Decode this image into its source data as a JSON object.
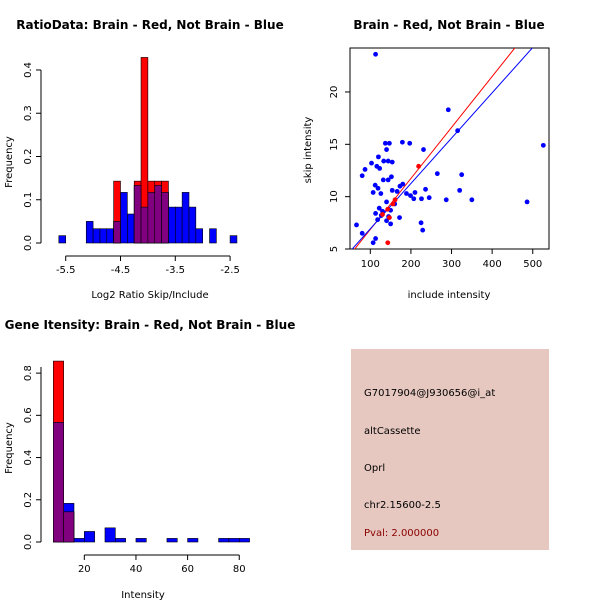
{
  "colors": {
    "red": "#ff0000",
    "blue": "#0000ff",
    "overlap": "#800080",
    "info_bg": "#e6c8c0",
    "pval": "#8b0000"
  },
  "chart_data": [
    {
      "id": "ratio",
      "type": "bar",
      "title": "RatioData: Brain - Red, Not Brain - Blue",
      "xlabel": "Log2 Ratio Skip/Include",
      "ylabel": "Frequency",
      "xlim": [
        -5.75,
        -2.1
      ],
      "ylim": [
        0,
        0.43
      ],
      "xticks": [
        -5.5,
        -4.5,
        -3.5,
        -2.5
      ],
      "xtick_labels": [
        "-5.5",
        "-4.5",
        "-3.5",
        "-2.5"
      ],
      "yticks": [
        0,
        0.1,
        0.2,
        0.3,
        0.4
      ],
      "ytick_labels": [
        "0.0",
        "0.1",
        "0.2",
        "0.3",
        "0.4"
      ],
      "bin_width": 0.125,
      "series": [
        {
          "name": "Not Brain",
          "color": "blue",
          "bins": [
            [
              -5.625,
              0.017
            ],
            [
              -5.125,
              0.05
            ],
            [
              -5.0,
              0.033
            ],
            [
              -4.875,
              0.033
            ],
            [
              -4.75,
              0.033
            ],
            [
              -4.625,
              0.05
            ],
            [
              -4.5,
              0.117
            ],
            [
              -4.375,
              0.067
            ],
            [
              -4.25,
              0.133
            ],
            [
              -4.125,
              0.083
            ],
            [
              -4.0,
              0.117
            ],
            [
              -3.875,
              0.133
            ],
            [
              -3.75,
              0.117
            ],
            [
              -3.625,
              0.083
            ],
            [
              -3.5,
              0.083
            ],
            [
              -3.375,
              0.117
            ],
            [
              -3.25,
              0.083
            ],
            [
              -3.125,
              0.033
            ],
            [
              -2.875,
              0.033
            ],
            [
              -2.5,
              0.017
            ]
          ]
        },
        {
          "name": "Brain",
          "color": "red",
          "bins": [
            [
              -4.625,
              0.143
            ],
            [
              -4.25,
              0.143
            ],
            [
              -4.125,
              0.429
            ],
            [
              -4.0,
              0.143
            ],
            [
              -3.875,
              0.143
            ],
            [
              -3.75,
              0.143
            ]
          ]
        }
      ]
    },
    {
      "id": "scatter",
      "type": "scatter",
      "title": "Brain - Red, Not Brain - Blue",
      "xlabel": "include intensity",
      "ylabel": "skip intensity",
      "xlim": [
        50,
        540
      ],
      "ylim": [
        5,
        24.2
      ],
      "xticks": [
        100,
        200,
        300,
        400,
        500
      ],
      "xtick_labels": [
        "100",
        "200",
        "300",
        "400",
        "500"
      ],
      "yticks": [
        5,
        10,
        15,
        20
      ],
      "ytick_labels": [
        "5",
        "10",
        "15",
        "20"
      ],
      "series": [
        {
          "name": "Not Brain",
          "color": "blue",
          "points": [
            [
              113,
              23.6
            ],
            [
              292,
              18.3
            ],
            [
              315,
              16.3
            ],
            [
              526,
              14.9
            ],
            [
              179,
              15.2
            ],
            [
              197,
              15.1
            ],
            [
              147,
              15.1
            ],
            [
              137,
              15.1
            ],
            [
              140,
              14.5
            ],
            [
              231,
              14.5
            ],
            [
              103,
              13.2
            ],
            [
              120,
              13.8
            ],
            [
              133,
              13.4
            ],
            [
              144,
              13.4
            ],
            [
              154,
              13.3
            ],
            [
              116,
              12.9
            ],
            [
              87,
              12.6
            ],
            [
              123,
              12.7
            ],
            [
              325,
              12.1
            ],
            [
              265,
              12.2
            ],
            [
              80,
              12.0
            ],
            [
              152,
              11.9
            ],
            [
              112,
              11.1
            ],
            [
              119,
              10.8
            ],
            [
              173,
              11.0
            ],
            [
              180,
              11.2
            ],
            [
              132,
              11.6
            ],
            [
              144,
              11.6
            ],
            [
              107,
              10.4
            ],
            [
              126,
              10.3
            ],
            [
              154,
              10.6
            ],
            [
              166,
              10.5
            ],
            [
              210,
              10.4
            ],
            [
              236,
              10.7
            ],
            [
              320,
              10.6
            ],
            [
              189,
              10.3
            ],
            [
              199,
              10.1
            ],
            [
              245,
              9.9
            ],
            [
              287,
              9.7
            ],
            [
              207,
              9.8
            ],
            [
              226,
              9.8
            ],
            [
              140,
              9.5
            ],
            [
              160,
              9.3
            ],
            [
              486,
              9.5
            ],
            [
              350,
              9.7
            ],
            [
              122,
              8.9
            ],
            [
              130,
              8.6
            ],
            [
              150,
              8.7
            ],
            [
              113,
              8.4
            ],
            [
              127,
              8.2
            ],
            [
              145,
              8.1
            ],
            [
              172,
              8.0
            ],
            [
              118,
              7.8
            ],
            [
              140,
              7.7
            ],
            [
              150,
              7.4
            ],
            [
              225,
              7.5
            ],
            [
              229,
              6.8
            ],
            [
              66,
              7.3
            ],
            [
              80,
              6.5
            ],
            [
              113,
              6.0
            ],
            [
              107,
              5.6
            ]
          ]
        },
        {
          "name": "Brain",
          "color": "red",
          "points": [
            [
              219,
              12.9
            ],
            [
              161,
              9.7
            ],
            [
              143,
              5.6
            ],
            [
              147,
              8.0
            ],
            [
              130,
              8.3
            ],
            [
              156,
              9.3
            ],
            [
              143,
              8.8
            ]
          ]
        }
      ],
      "fit_lines": [
        {
          "name": "Brain fit",
          "color": "red",
          "slope": 0.0487,
          "intercept": 2.0
        },
        {
          "name": "Not Brain fit",
          "color": "blue",
          "slope": 0.0433,
          "intercept": 2.6
        }
      ]
    },
    {
      "id": "intensity",
      "type": "bar",
      "title": "Gene Itensity: Brain - Red, Not Brain - Blue",
      "xlabel": "Intensity",
      "ylabel": "Frequency",
      "xlim": [
        4,
        83
      ],
      "ylim": [
        0,
        0.9
      ],
      "xticks": [
        20,
        40,
        60,
        80
      ],
      "xtick_labels": [
        "20",
        "40",
        "60",
        "80"
      ],
      "yticks": [
        0,
        0.2,
        0.4,
        0.6,
        0.8
      ],
      "ytick_labels": [
        "0.0",
        "0.2",
        "0.4",
        "0.6",
        "0.8"
      ],
      "bin_width": 4,
      "series": [
        {
          "name": "Not Brain",
          "color": "blue",
          "bins": [
            [
              8,
              0.567
            ],
            [
              12,
              0.183
            ],
            [
              16,
              0.017
            ],
            [
              20,
              0.05
            ],
            [
              28,
              0.067
            ],
            [
              32,
              0.017
            ],
            [
              40,
              0.017
            ],
            [
              52,
              0.017
            ],
            [
              60,
              0.017
            ],
            [
              72,
              0.017
            ],
            [
              76,
              0.017
            ],
            [
              80,
              0.017
            ]
          ]
        },
        {
          "name": "Brain",
          "color": "red",
          "bins": [
            [
              8,
              0.857
            ],
            [
              12,
              0.143
            ]
          ]
        }
      ]
    }
  ],
  "info": {
    "probe_id": "G7017904@J930656@i_at",
    "event_type": "altCassette",
    "gene": "Oprl",
    "location": "chr2.15600-2.5",
    "pval": "Pval: 2.000000"
  }
}
